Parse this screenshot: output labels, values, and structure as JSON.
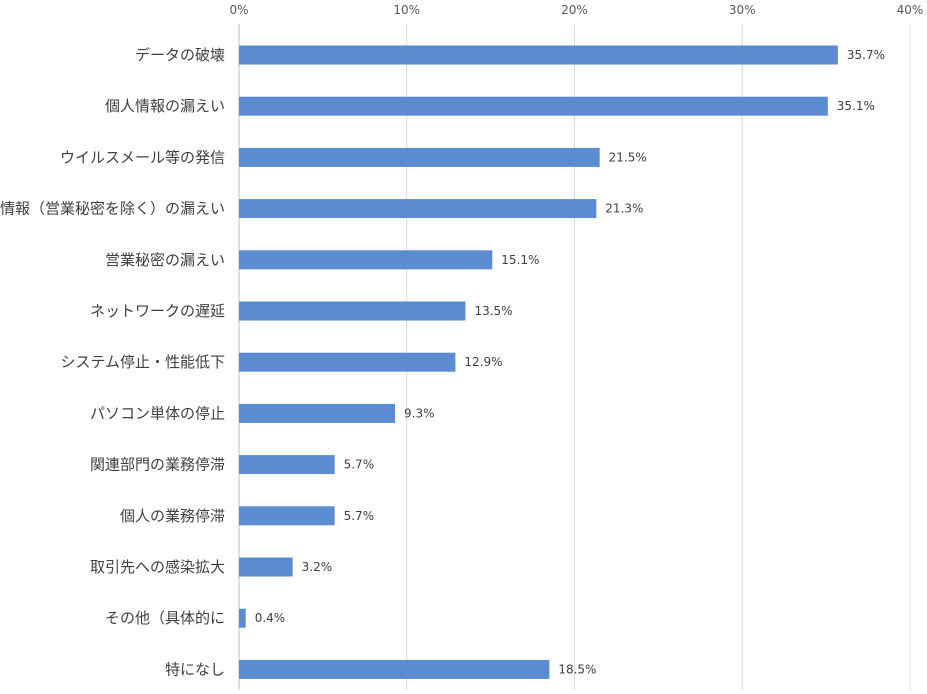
{
  "chart_data": {
    "type": "bar",
    "orientation": "horizontal",
    "title": "",
    "xlabel": "",
    "ylabel": "",
    "xlim": [
      0,
      40
    ],
    "x_ticks": [
      "0%",
      "10%",
      "20%",
      "30%",
      "40%"
    ],
    "x_tick_values": [
      0,
      10,
      20,
      30,
      40
    ],
    "x_axis_position": "top",
    "grid": true,
    "legend": "none",
    "bar_color": "#5b8bd0",
    "categories": [
      "データの破壊",
      "個人情報の漏えい",
      "ウイルスメール等の発信",
      "業務情報（営業秘密を除く）の漏えい",
      "営業秘密の漏えい",
      "ネットワークの遅延",
      "システム停止・性能低下",
      "パソコン単体の停止",
      "関連部門の業務停滞",
      "個人の業務停滞",
      "取引先への感染拡大",
      "その他（具体的に",
      "特になし"
    ],
    "values": [
      35.7,
      35.1,
      21.5,
      21.3,
      15.1,
      13.5,
      12.9,
      9.3,
      5.7,
      5.7,
      3.2,
      0.4,
      18.5
    ],
    "data_labels": [
      "35.7%",
      "35.1%",
      "21.5%",
      "21.3%",
      "15.1%",
      "13.5%",
      "12.9%",
      "9.3%",
      "5.7%",
      "5.7%",
      "3.2%",
      "0.4%",
      "18.5%"
    ]
  }
}
